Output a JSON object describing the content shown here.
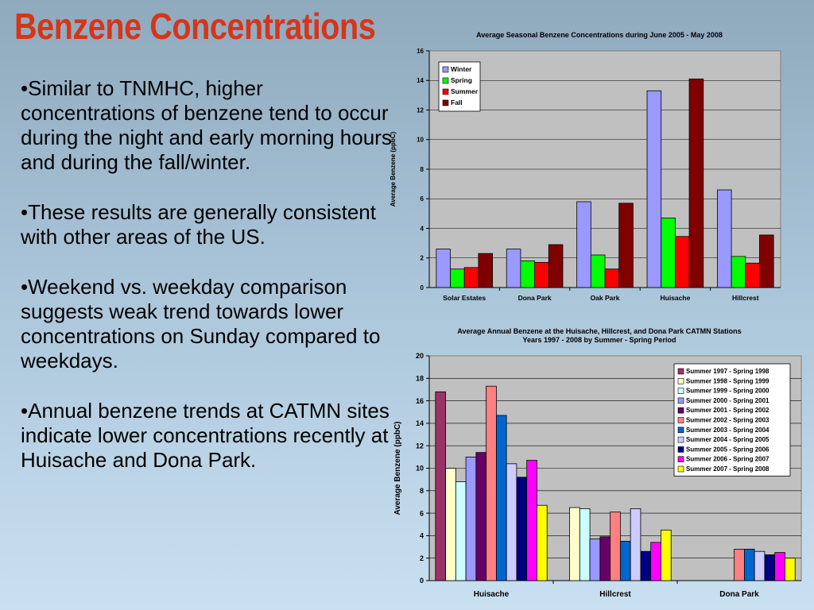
{
  "slide": {
    "title": "Benzene Concentrations",
    "bullets": [
      "•Similar to TNMHC, higher concentrations of benzene tend to occur during the night and early morning hours and during the fall/winter.",
      "•These results are generally consistent with other areas of the US.",
      "•Weekend vs. weekday comparison suggests weak trend towards lower concentrations on Sunday compared to weekdays.",
      "•Annual benzene trends at CATMN sites indicate lower concentrations recently at Huisache and Dona Park."
    ]
  },
  "chart_data": [
    {
      "type": "bar",
      "title": "Average Seasonal Benzene Concentrations during June 2005 - May 2008",
      "xlabel": "",
      "ylabel": "Average Benzene (ppbC)",
      "ylim": [
        0,
        16
      ],
      "yticks": [
        "0",
        "2",
        "4",
        "6",
        "8",
        "10",
        "12",
        "14",
        "16"
      ],
      "grid": true,
      "legend": "top-left",
      "plot_background": "#c0c0c0",
      "categories": [
        "Solar Estates",
        "Dona Park",
        "Oak Park",
        "Huisache",
        "Hillcrest"
      ],
      "series": [
        {
          "name": "Winter",
          "color": "#9999ff",
          "values": [
            2.6,
            2.6,
            5.8,
            13.3,
            6.6
          ]
        },
        {
          "name": "Spring",
          "color": "#00ff00",
          "values": [
            1.25,
            1.8,
            2.2,
            4.7,
            2.1
          ]
        },
        {
          "name": "Summer",
          "color": "#ff0000",
          "values": [
            1.35,
            1.7,
            1.25,
            3.45,
            1.65
          ]
        },
        {
          "name": "Fall",
          "color": "#800000",
          "values": [
            2.3,
            2.9,
            5.7,
            14.1,
            3.55
          ]
        }
      ]
    },
    {
      "type": "bar",
      "title": "Average Annual Benzene at the Huisache, Hillcrest, and Dona Park CATMN Stations",
      "subtitle": "Years 1997 - 2008 by Summer - Spring Period",
      "xlabel": "",
      "ylabel": "Average Benzene (ppbC)",
      "ylim": [
        0,
        20
      ],
      "yticks": [
        "0",
        "2",
        "4",
        "6",
        "8",
        "10",
        "12",
        "14",
        "16",
        "18",
        "20"
      ],
      "grid": true,
      "legend": "top-right",
      "plot_background": "#c0c0c0",
      "categories": [
        "Huisache",
        "Hillcrest",
        "Dona Park"
      ],
      "series": [
        {
          "name": "Summer 1997 - Spring 1998",
          "color": "#993366",
          "values": [
            16.8,
            null,
            null
          ]
        },
        {
          "name": "Summer 1998 - Spring 1999",
          "color": "#ffffcc",
          "values": [
            10.0,
            6.5,
            null
          ]
        },
        {
          "name": "Summer 1999 - Spring 2000",
          "color": "#ccffff",
          "values": [
            8.8,
            6.4,
            null
          ]
        },
        {
          "name": "Summer 2000 - Spring 2001",
          "color": "#9999ff",
          "values": [
            11.0,
            3.7,
            null
          ]
        },
        {
          "name": "Summer 2001 - Spring 2002",
          "color": "#660066",
          "values": [
            11.4,
            3.9,
            null
          ]
        },
        {
          "name": "Summer 2002 - Spring 2003",
          "color": "#ff8080",
          "values": [
            17.3,
            6.1,
            2.8
          ]
        },
        {
          "name": "Summer 2003 - Spring 2004",
          "color": "#0066cc",
          "values": [
            14.7,
            3.5,
            2.8
          ]
        },
        {
          "name": "Summer 2004 - Spring 2005",
          "color": "#ccccff",
          "values": [
            10.4,
            6.4,
            2.6
          ]
        },
        {
          "name": "Summer 2005 - Spring 2006",
          "color": "#000080",
          "values": [
            9.2,
            2.6,
            2.3
          ]
        },
        {
          "name": "Summer 2006 - Spring 2007",
          "color": "#ff00ff",
          "values": [
            10.7,
            3.4,
            2.5
          ]
        },
        {
          "name": "Summer 2007 - Spring 2008",
          "color": "#ffff00",
          "values": [
            6.7,
            4.5,
            2.0
          ]
        }
      ]
    }
  ]
}
